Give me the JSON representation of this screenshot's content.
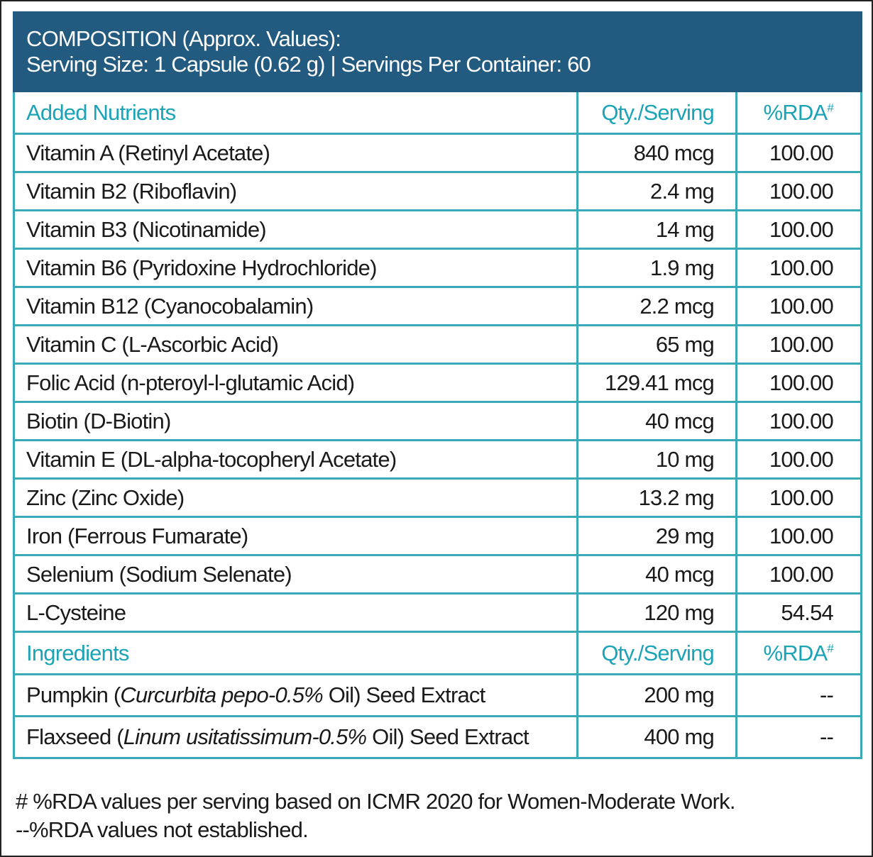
{
  "header": {
    "title": "COMPOSITION (Approx. Values):",
    "subtitle": "Serving Size: 1 Capsule (0.62 g) | Servings Per Container: 60"
  },
  "sections": [
    {
      "heading": {
        "name": "Added Nutrients",
        "qty": "Qty./Serving",
        "rda": "%RDA",
        "rda_mark": "#"
      },
      "rows": [
        {
          "name": [
            "Vitamin A (Retinyl Acetate)"
          ],
          "qty": "840 mcg",
          "rda": "100.00"
        },
        {
          "name": [
            "Vitamin B2 (Riboflavin)"
          ],
          "qty": "2.4 mg",
          "rda": "100.00"
        },
        {
          "name": [
            "Vitamin B3 (Nicotinamide)"
          ],
          "qty": "14 mg",
          "rda": "100.00"
        },
        {
          "name": [
            "Vitamin B6 (Pyridoxine Hydrochloride)"
          ],
          "qty": "1.9 mg",
          "rda": "100.00"
        },
        {
          "name": [
            "Vitamin B12 (Cyanocobalamin)"
          ],
          "qty": "2.2 mcg",
          "rda": "100.00"
        },
        {
          "name": [
            "Vitamin C (L-Ascorbic Acid)"
          ],
          "qty": "65 mg",
          "rda": "100.00"
        },
        {
          "name": [
            "Folic Acid (n-pteroyl-l-glutamic Acid)"
          ],
          "qty": "129.41 mcg",
          "rda": "100.00"
        },
        {
          "name": [
            "Biotin (D-Biotin)"
          ],
          "qty": "40 mcg",
          "rda": "100.00"
        },
        {
          "name": [
            "Vitamin E (DL-alpha-tocopheryl Acetate)"
          ],
          "qty": "10 mg",
          "rda": "100.00"
        },
        {
          "name": [
            "Zinc (Zinc Oxide)"
          ],
          "qty": "13.2 mg",
          "rda": "100.00"
        },
        {
          "name": [
            "Iron (Ferrous Fumarate)"
          ],
          "qty": "29 mg",
          "rda": "100.00"
        },
        {
          "name": [
            "Selenium (Sodium Selenate)"
          ],
          "qty": "40 mcg",
          "rda": "100.00"
        },
        {
          "name": [
            "L-Cysteine"
          ],
          "qty": "120 mg",
          "rda": "54.54"
        }
      ]
    },
    {
      "heading": {
        "name": "Ingredients",
        "qty": "Qty./Serving",
        "rda": "%RDA",
        "rda_mark": "#"
      },
      "rows": [
        {
          "name": [
            "Pumpkin (",
            "Curcurbita pepo-0.5%",
            " Oil) Seed Extract"
          ],
          "qty": "200 mg",
          "rda": "--"
        },
        {
          "name": [
            "Flaxseed (",
            "Linum usitatissimum-0.5%",
            " Oil) Seed Extract"
          ],
          "qty": "400 mg",
          "rda": "--"
        }
      ]
    }
  ],
  "footnotes": [
    "# %RDA values per serving based on ICMR 2020 for Women-Moderate Work.",
    "--%RDA values not established."
  ]
}
